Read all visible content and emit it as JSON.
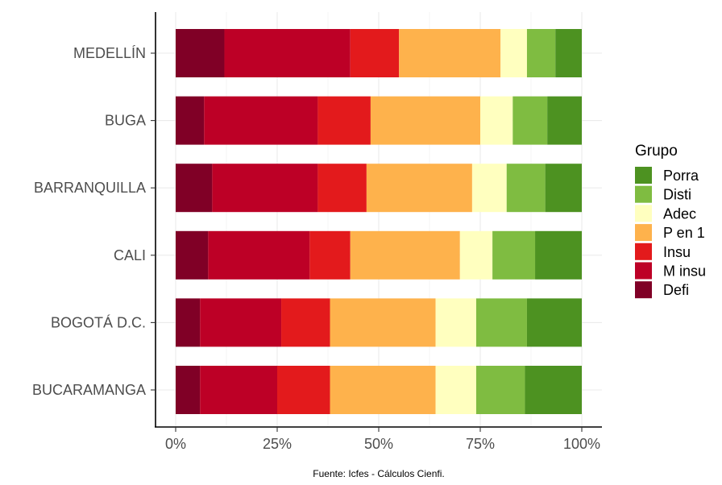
{
  "chart_data": {
    "type": "bar",
    "orientation": "horizontal",
    "stacked": true,
    "percent": true,
    "categories": [
      "MEDELLÍN",
      "BUGA",
      "BARRANQUILLA",
      "CALI",
      "BOGOTÁ D.C.",
      "BUCARAMANGA"
    ],
    "series": [
      {
        "name": "Defi",
        "color": "#800026",
        "values": [
          12,
          7,
          9,
          8,
          6,
          6
        ]
      },
      {
        "name": "M insu",
        "color": "#BD0026",
        "values": [
          31,
          28,
          26,
          25,
          20,
          19
        ]
      },
      {
        "name": "Insu",
        "color": "#E31A1C",
        "values": [
          12,
          13,
          12,
          10,
          12,
          13
        ]
      },
      {
        "name": "P en 1",
        "color": "#FEB24C",
        "values": [
          25,
          27,
          26,
          27,
          26,
          26
        ]
      },
      {
        "name": "Adec",
        "color": "#FFFFBF",
        "values": [
          6.5,
          8,
          8.5,
          8,
          10,
          10
        ]
      },
      {
        "name": "Disti",
        "color": "#7FBC41",
        "values": [
          7,
          8.5,
          9.5,
          10.5,
          12.5,
          12
        ]
      },
      {
        "name": "Porra",
        "color": "#4D9221",
        "values": [
          6.5,
          8.5,
          9,
          11.5,
          13.5,
          14
        ]
      }
    ],
    "x_ticks": [
      "0%",
      "25%",
      "50%",
      "75%",
      "100%"
    ],
    "xlim": [
      0,
      100
    ],
    "legend_title": "Grupo",
    "legend_order": [
      "Porra",
      "Disti",
      "Adec",
      "P en 1",
      "Insu",
      "M insu",
      "Defi"
    ],
    "legend_position": "right",
    "grid": true,
    "caption": "Fuente: Icfes - Cálculos Cienfi."
  }
}
